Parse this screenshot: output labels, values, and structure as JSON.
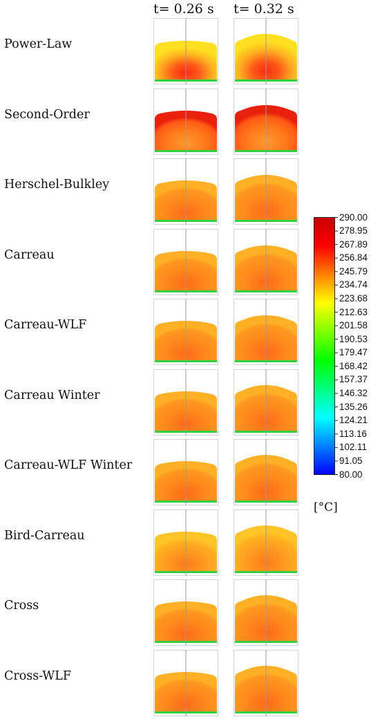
{
  "column_titles": [
    "t= 0.26 s",
    "t= 0.32 s"
  ],
  "models": [
    "Power-Law",
    "Second-Order",
    "Herschel-Bulkley",
    "Carreau",
    "Carreau-WLF",
    "Carreau Winter",
    "Carreau-WLF Winter",
    "Bird-Carreau",
    "Cross",
    "Cross-WLF"
  ],
  "colorbar": {
    "min": 80.0,
    "max": 290.0,
    "ticks": [
      "290.00",
      "278.95",
      "267.89",
      "256.84",
      "245.79",
      "234.74",
      "223.68",
      "212.63",
      "201.58",
      "190.53",
      "179.47",
      "168.42",
      "157.37",
      "146.32",
      "135.26",
      "124.21",
      "113.16",
      "102.11",
      "91.05",
      "80.00"
    ],
    "unit": "[°C]",
    "colors": [
      "#0000ff",
      "#0080ff",
      "#00ffff",
      "#00ff80",
      "#00ff00",
      "#80ff00",
      "#ffff00",
      "#ff8000",
      "#ff0000",
      "#c80000"
    ]
  },
  "colors": {
    "core_hot": "#ff2a10",
    "body_orange": "#ff8a1c",
    "edge_yellow": "#ffe020",
    "cold_green": "#30d040",
    "axis_line": "#9a9a9a",
    "frame": "#d4d4d4"
  }
}
